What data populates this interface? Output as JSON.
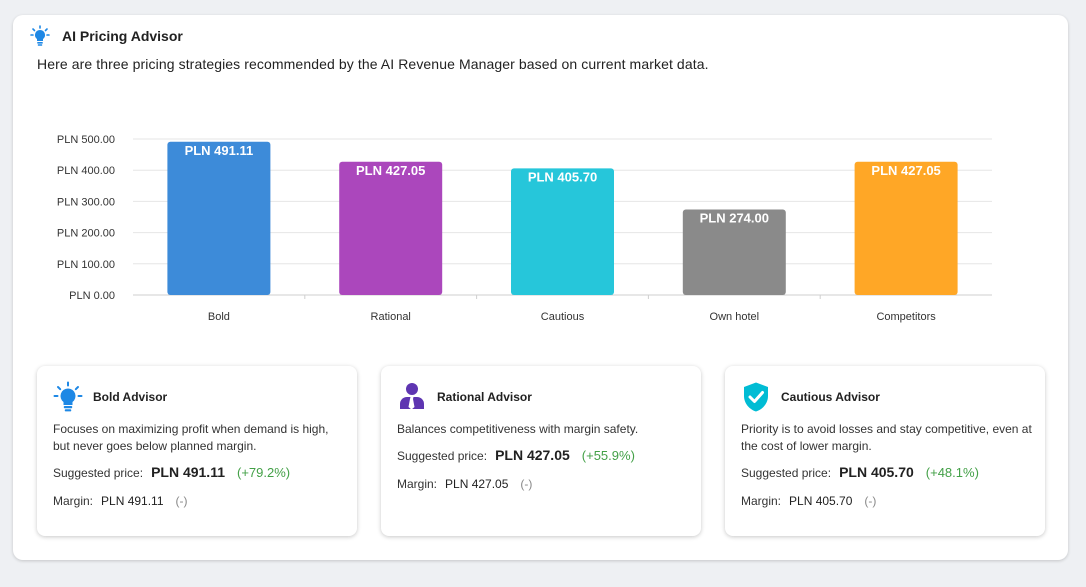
{
  "header": {
    "title": "AI Pricing Advisor",
    "icon": "lightbulb-icon",
    "icon_color": "#1e88e5"
  },
  "intro": "Here are three pricing strategies recommended by the AI Revenue Manager based on current market data.",
  "chart_data": {
    "type": "bar",
    "categories": [
      "Bold",
      "Rational",
      "Cautious",
      "Own hotel",
      "Competitors"
    ],
    "values": [
      491.11,
      427.05,
      405.7,
      274.0,
      427.05
    ],
    "data_labels": [
      "PLN 491.11",
      "PLN 427.05",
      "PLN 405.70",
      "PLN 274.00",
      "PLN 427.05"
    ],
    "colors": [
      "#3d8bd9",
      "#ab47bc",
      "#26c6da",
      "#8a8a8a",
      "#ffa726"
    ],
    "yticks": [
      "PLN 0.00",
      "PLN 100.00",
      "PLN 200.00",
      "PLN 300.00",
      "PLN 400.00",
      "PLN 500.00"
    ],
    "ylim": [
      0,
      500
    ],
    "title": "",
    "xlabel": "",
    "ylabel": "",
    "grid": true
  },
  "cards": [
    {
      "title": "Bold Advisor",
      "icon": "lightbulb-icon",
      "icon_color": "#1e88e5",
      "description": "Focuses on maximizing profit when demand is high, but never goes below planned margin.",
      "price_label": "Suggested price:",
      "price": "PLN 491.11",
      "delta": "(+79.2%)",
      "margin_label": "Margin:",
      "margin": "PLN 491.11",
      "margin_delta": "(-)"
    },
    {
      "title": "Rational Advisor",
      "icon": "person-tie-icon",
      "icon_color": "#5e35b1",
      "description": "Balances competitiveness with margin safety.",
      "price_label": "Suggested price:",
      "price": "PLN 427.05",
      "delta": "(+55.9%)",
      "margin_label": "Margin:",
      "margin": "PLN 427.05",
      "margin_delta": "(-)"
    },
    {
      "title": "Cautious Advisor",
      "icon": "shield-check-icon",
      "icon_color": "#00acc1",
      "description": "Priority is to avoid losses and stay competitive, even at the cost of lower margin.",
      "price_label": "Suggested price:",
      "price": "PLN 405.70",
      "delta": "(+48.1%)",
      "margin_label": "Margin:",
      "margin": "PLN 405.70",
      "margin_delta": "(-)"
    }
  ]
}
